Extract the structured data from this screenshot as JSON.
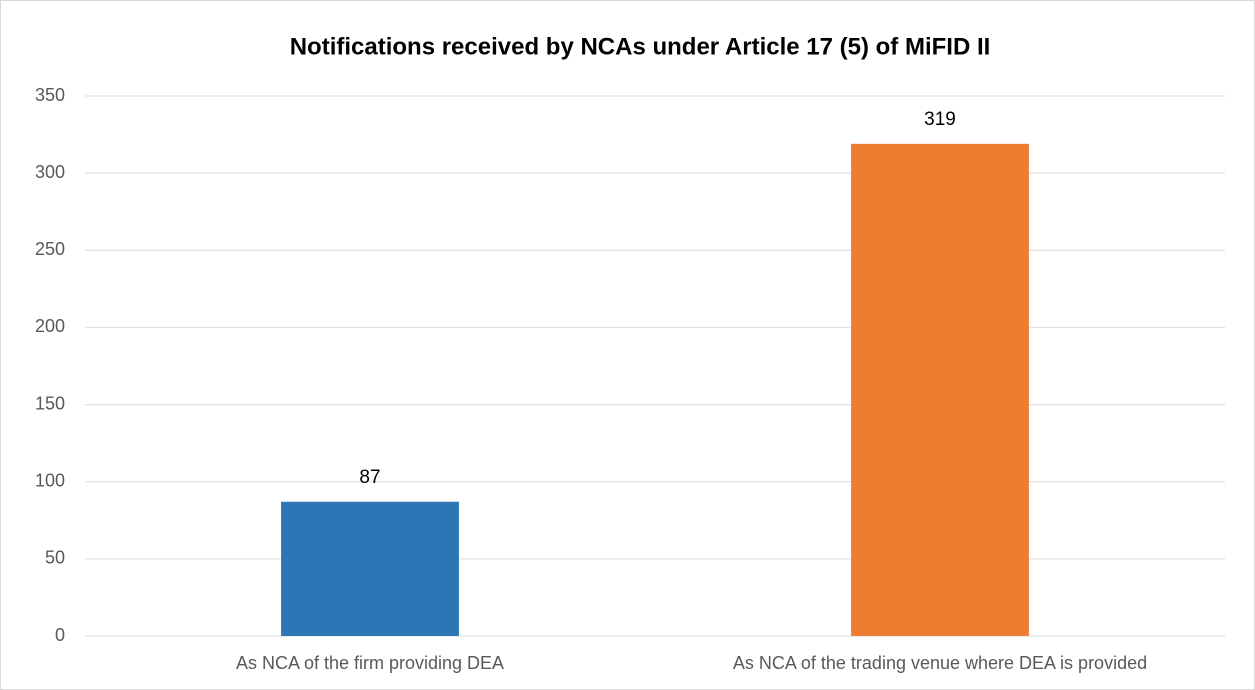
{
  "chart_data": {
    "type": "bar",
    "title": "Notifications received by NCAs under Article 17 (5) of MiFID II",
    "categories": [
      "As NCA of the firm providing DEA",
      "As NCA of the trading venue where DEA is provided"
    ],
    "values": [
      87,
      319
    ],
    "colors": [
      "#2e75b6",
      "#ed7d31"
    ],
    "ylim": [
      0,
      350
    ],
    "yticks": [
      0,
      50,
      100,
      150,
      200,
      250,
      300,
      350
    ],
    "grid": true,
    "data_labels": true
  }
}
